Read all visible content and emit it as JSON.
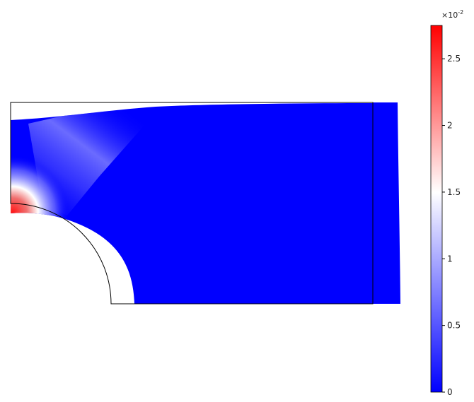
{
  "colorbar": {
    "scale_base": "×10",
    "scale_exponent": "-2",
    "min": 0,
    "max": 2.75,
    "ticks": [
      {
        "value": 0,
        "label": "0"
      },
      {
        "value": 0.5,
        "label": "0.5"
      },
      {
        "value": 1,
        "label": "1"
      },
      {
        "value": 1.5,
        "label": "1.5"
      },
      {
        "value": 2,
        "label": "2"
      },
      {
        "value": 2.5,
        "label": "2.5"
      }
    ],
    "colors": {
      "low": "#0000ff",
      "mid": "#ffffff",
      "high": "#ff0000"
    }
  },
  "plot": {
    "outline_color": "#000000"
  }
}
